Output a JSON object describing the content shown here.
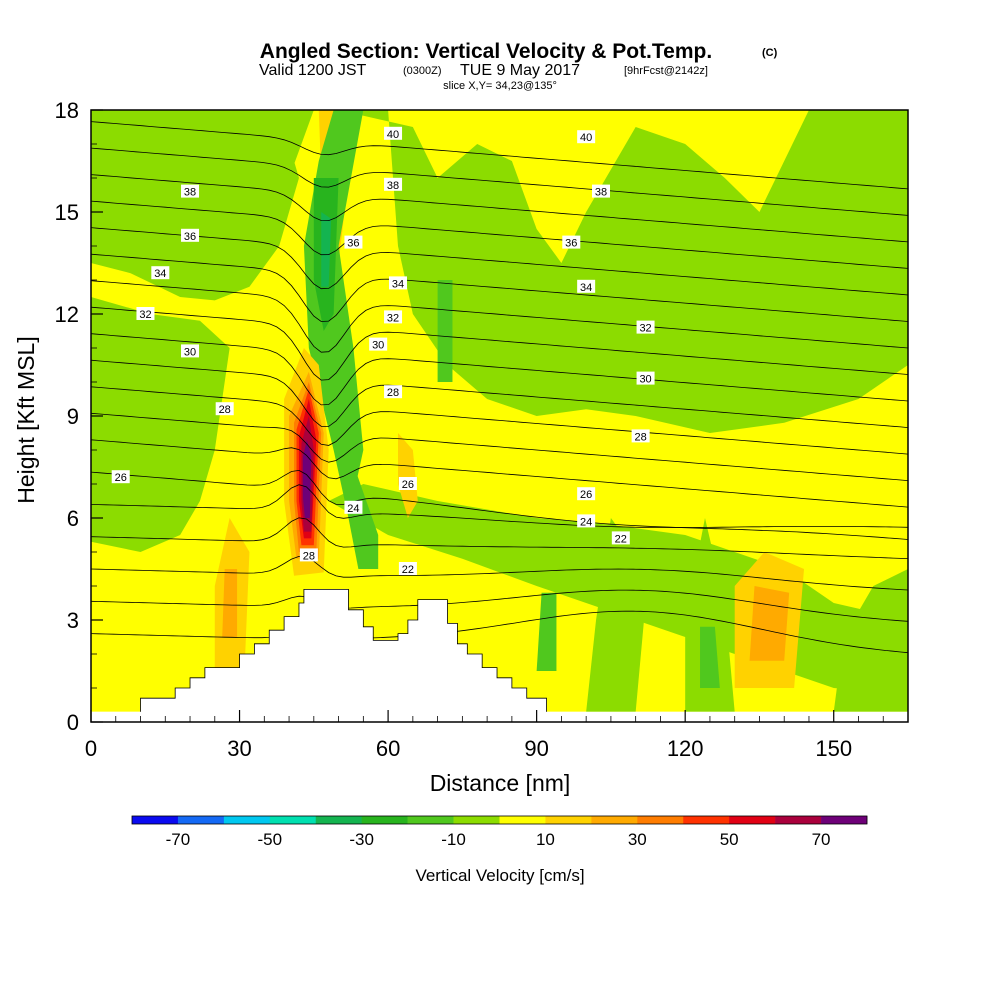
{
  "title": {
    "main": "Angled Section: Vertical Velocity & Pot.Temp.",
    "main_suffix": "(C)",
    "valid_prefix": "Valid 1200 JST",
    "valid_zulu": "(0300Z)",
    "valid_date": "TUE 9 May 2017",
    "valid_fcst": "[9hrFcst@2142z]",
    "slice": "slice X,Y= 34,23@135°"
  },
  "chart_data": {
    "type": "heatmap",
    "xlabel": "Distance [nm]",
    "ylabel": "Height [Kft MSL]",
    "xlim": [
      0,
      165
    ],
    "ylim": [
      0,
      18
    ],
    "x_ticks": [
      0,
      30,
      60,
      90,
      120,
      150
    ],
    "y_ticks": [
      0,
      3,
      6,
      9,
      12,
      15,
      18
    ],
    "colorbar": {
      "label": "Vertical Velocity [cm/s]",
      "tick_values": [
        -70,
        -50,
        -30,
        -10,
        10,
        30,
        50,
        70
      ],
      "bounds": [
        -80,
        -70,
        -60,
        -50,
        -40,
        -30,
        -20,
        -10,
        0,
        10,
        20,
        30,
        40,
        50,
        60,
        70,
        80
      ],
      "colors": [
        "#0a0af0",
        "#1469f5",
        "#00c8f0",
        "#00e0b0",
        "#14b450",
        "#28b41e",
        "#50c81e",
        "#8cdc00",
        "#ffff00",
        "#ffd200",
        "#ffaa00",
        "#ff7d00",
        "#ff3200",
        "#e10014",
        "#aa003c",
        "#6e0078"
      ]
    },
    "terrain": [
      [
        10,
        0.7
      ],
      [
        17,
        0.7
      ],
      [
        17,
        1.0
      ],
      [
        20,
        1.0
      ],
      [
        20,
        1.3
      ],
      [
        23,
        1.3
      ],
      [
        23,
        1.6
      ],
      [
        30,
        1.6
      ],
      [
        30,
        2.0
      ],
      [
        33,
        2.0
      ],
      [
        33,
        2.3
      ],
      [
        36,
        2.3
      ],
      [
        36,
        2.7
      ],
      [
        39,
        2.7
      ],
      [
        39,
        3.1
      ],
      [
        42,
        3.1
      ],
      [
        42,
        3.5
      ],
      [
        43,
        3.5
      ],
      [
        43,
        3.9
      ],
      [
        52,
        3.9
      ],
      [
        52,
        3.3
      ],
      [
        55,
        3.3
      ],
      [
        55,
        2.8
      ],
      [
        57,
        2.8
      ],
      [
        57,
        2.4
      ],
      [
        62,
        2.4
      ],
      [
        62,
        2.6
      ],
      [
        64,
        2.6
      ],
      [
        64,
        3.0
      ],
      [
        66,
        3.0
      ],
      [
        66,
        3.6
      ],
      [
        72,
        3.6
      ],
      [
        72,
        2.9
      ],
      [
        74,
        2.9
      ],
      [
        74,
        2.3
      ],
      [
        76,
        2.3
      ],
      [
        76,
        2.0
      ],
      [
        79,
        2.0
      ],
      [
        79,
        1.6
      ],
      [
        82,
        1.6
      ],
      [
        82,
        1.3
      ],
      [
        85,
        1.3
      ],
      [
        85,
        1.0
      ],
      [
        88,
        1.0
      ],
      [
        88,
        0.7
      ],
      [
        92,
        0.7
      ]
    ],
    "velocity_regions": [
      {
        "value": 0,
        "points": [
          [
            0,
            0.3
          ],
          [
            0,
            18
          ],
          [
            165,
            18
          ],
          [
            165,
            0.3
          ]
        ]
      },
      {
        "value": -10,
        "points": [
          [
            0,
            15.5
          ],
          [
            10,
            15.7
          ],
          [
            25,
            15.2
          ],
          [
            35,
            15.0
          ],
          [
            40,
            16.0
          ],
          [
            45,
            18
          ],
          [
            0,
            18
          ]
        ]
      },
      {
        "value": -10,
        "points": [
          [
            0,
            13.5
          ],
          [
            8,
            13.2
          ],
          [
            18,
            12.5
          ],
          [
            25,
            12.4
          ],
          [
            32,
            12.8
          ],
          [
            38,
            14.0
          ],
          [
            42,
            16.0
          ],
          [
            40,
            17.0
          ],
          [
            30,
            16.8
          ],
          [
            20,
            16.5
          ],
          [
            10,
            16.0
          ],
          [
            0,
            15.8
          ]
        ]
      },
      {
        "value": -10,
        "points": [
          [
            0,
            12.5
          ],
          [
            12,
            12.0
          ],
          [
            22,
            11.8
          ],
          [
            28,
            11.0
          ],
          [
            25,
            8.0
          ],
          [
            22,
            6.5
          ],
          [
            18,
            5.5
          ],
          [
            10,
            5.0
          ],
          [
            0,
            5.3
          ]
        ]
      },
      {
        "value": -10,
        "points": [
          [
            50,
            18
          ],
          [
            60,
            18
          ],
          [
            62,
            14.0
          ],
          [
            65,
            12.0
          ],
          [
            72,
            10.5
          ],
          [
            80,
            9.5
          ],
          [
            90,
            9.0
          ],
          [
            100,
            9.2
          ],
          [
            110,
            9.0
          ],
          [
            125,
            8.5
          ],
          [
            140,
            8.8
          ],
          [
            155,
            9.5
          ],
          [
            165,
            10.5
          ],
          [
            165,
            18
          ],
          [
            145,
            18
          ],
          [
            135,
            15.0
          ],
          [
            128,
            16.0
          ],
          [
            120,
            17.0
          ],
          [
            110,
            17.5
          ],
          [
            100,
            15.0
          ],
          [
            95,
            13.5
          ],
          [
            90,
            14.5
          ],
          [
            85,
            16.5
          ],
          [
            78,
            17.0
          ],
          [
            70,
            16.0
          ],
          [
            65,
            17.5
          ]
        ]
      },
      {
        "value": -10,
        "points": [
          [
            48,
            6.5
          ],
          [
            60,
            5.5
          ],
          [
            75,
            4.8
          ],
          [
            90,
            4.0
          ],
          [
            100,
            3.5
          ],
          [
            110,
            3.0
          ],
          [
            120,
            2.5
          ],
          [
            130,
            2.0
          ],
          [
            140,
            1.5
          ],
          [
            150,
            1.0
          ],
          [
            165,
            0.8
          ],
          [
            165,
            3.0
          ],
          [
            150,
            3.5
          ],
          [
            140,
            4.5
          ],
          [
            130,
            5.0
          ],
          [
            120,
            5.5
          ],
          [
            105,
            5.8
          ],
          [
            90,
            6.0
          ],
          [
            70,
            6.5
          ],
          [
            55,
            7.0
          ]
        ]
      },
      {
        "value": -10,
        "points": [
          [
            100,
            0.3
          ],
          [
            110,
            0.3
          ],
          [
            112,
            3.5
          ],
          [
            110,
            5.0
          ],
          [
            105,
            6.0
          ],
          [
            102,
            3.0
          ]
        ]
      },
      {
        "value": -10,
        "points": [
          [
            120,
            0.3
          ],
          [
            130,
            0.3
          ],
          [
            128,
            3.5
          ],
          [
            124,
            6.0
          ],
          [
            120,
            3.0
          ]
        ]
      },
      {
        "value": -10,
        "points": [
          [
            150,
            0.3
          ],
          [
            165,
            0.3
          ],
          [
            165,
            4.5
          ],
          [
            158,
            4.0
          ],
          [
            152,
            2.5
          ]
        ]
      },
      {
        "value": 10,
        "points": [
          [
            130,
            1.0
          ],
          [
            142,
            1.0
          ],
          [
            144,
            4.5
          ],
          [
            136,
            5.0
          ],
          [
            130,
            4.0
          ]
        ]
      },
      {
        "value": 20,
        "points": [
          [
            133,
            1.8
          ],
          [
            140,
            1.8
          ],
          [
            141,
            3.8
          ],
          [
            134,
            4.0
          ]
        ]
      },
      {
        "value": 10,
        "points": [
          [
            25,
            1.5
          ],
          [
            31,
            1.5
          ],
          [
            32,
            5.0
          ],
          [
            28,
            6.0
          ],
          [
            25,
            4.0
          ]
        ]
      },
      {
        "value": 20,
        "points": [
          [
            26.5,
            2.5
          ],
          [
            29.5,
            2.5
          ],
          [
            29.5,
            4.5
          ],
          [
            27,
            4.5
          ]
        ]
      },
      {
        "value": 10,
        "points": [
          [
            47,
            14.0
          ],
          [
            50,
            13.5
          ],
          [
            52,
            16.0
          ],
          [
            51,
            18
          ],
          [
            46,
            18
          ]
        ]
      },
      {
        "value": 20,
        "points": [
          [
            48.5,
            15.0
          ],
          [
            50.5,
            14.8
          ],
          [
            51.0,
            16.5
          ],
          [
            49.0,
            16.8
          ]
        ]
      },
      {
        "value": 10,
        "points": [
          [
            62,
            8.5
          ],
          [
            65,
            8.0
          ],
          [
            66,
            6.5
          ],
          [
            64,
            6.0
          ],
          [
            62,
            7.0
          ]
        ]
      },
      {
        "value": -20,
        "points": [
          [
            70,
            13.0
          ],
          [
            73,
            13.0
          ],
          [
            73,
            10.0
          ],
          [
            70,
            10.0
          ]
        ]
      },
      {
        "value": -20,
        "points": [
          [
            52,
            8.0
          ],
          [
            58,
            5.5
          ],
          [
            58,
            4.5
          ],
          [
            54,
            4.5
          ],
          [
            52,
            6.0
          ]
        ]
      },
      {
        "value": -20,
        "points": [
          [
            90,
            1.5
          ],
          [
            94,
            1.5
          ],
          [
            94,
            3.8
          ],
          [
            91,
            3.8
          ]
        ]
      },
      {
        "value": -20,
        "points": [
          [
            123,
            1.0
          ],
          [
            127,
            1.0
          ],
          [
            126,
            2.8
          ],
          [
            123,
            2.8
          ]
        ]
      },
      {
        "value": -20,
        "points": [
          [
            49,
            18
          ],
          [
            55,
            18
          ],
          [
            50,
            14.0
          ],
          [
            53,
            11.0
          ],
          [
            55,
            8.0
          ],
          [
            52,
            6.0
          ],
          [
            49,
            8.0
          ],
          [
            44,
            11.0
          ],
          [
            43,
            14.0
          ],
          [
            46,
            16.5
          ]
        ]
      },
      {
        "value": -30,
        "points": [
          [
            45,
            16.0
          ],
          [
            50,
            16.0
          ],
          [
            49,
            12.0
          ],
          [
            47,
            11.5
          ],
          [
            45,
            13.0
          ]
        ]
      },
      {
        "value": -40,
        "points": [
          [
            46.5,
            15.0
          ],
          [
            48.5,
            14.8
          ],
          [
            48.0,
            12.8
          ],
          [
            46.5,
            12.8
          ]
        ]
      },
      {
        "value": 10,
        "points": [
          [
            41,
            4.3
          ],
          [
            47,
            4.4
          ],
          [
            48,
            8.0
          ],
          [
            46,
            10.5
          ],
          [
            43,
            11.0
          ],
          [
            39,
            9.5
          ],
          [
            39,
            6.5
          ]
        ]
      },
      {
        "value": 20,
        "points": [
          [
            41.5,
            4.8
          ],
          [
            46,
            4.8
          ],
          [
            47,
            8.5
          ],
          [
            44,
            10.3
          ],
          [
            40,
            9.0
          ],
          [
            40,
            6.5
          ]
        ]
      },
      {
        "value": 30,
        "points": [
          [
            42,
            5.0
          ],
          [
            45.5,
            5.0
          ],
          [
            46.5,
            8.5
          ],
          [
            44,
            10.0
          ],
          [
            41,
            8.8
          ],
          [
            41,
            6.5
          ]
        ]
      },
      {
        "value": 40,
        "points": [
          [
            42.5,
            5.2
          ],
          [
            45,
            5.2
          ],
          [
            46,
            8.5
          ],
          [
            44,
            9.8
          ],
          [
            41.5,
            8.6
          ],
          [
            41.5,
            6.5
          ]
        ]
      },
      {
        "value": 50,
        "points": [
          [
            43,
            5.4
          ],
          [
            44.5,
            5.4
          ],
          [
            45.5,
            8.3
          ],
          [
            44,
            9.5
          ],
          [
            42,
            8.4
          ],
          [
            42,
            6.5
          ]
        ]
      },
      {
        "value": 60,
        "points": [
          [
            43,
            5.6
          ],
          [
            44.5,
            5.6
          ],
          [
            45,
            8.0
          ],
          [
            44,
            9.0
          ],
          [
            42.5,
            8.2
          ],
          [
            42.5,
            6.5
          ]
        ]
      },
      {
        "value": 70,
        "points": [
          [
            43.2,
            6.0
          ],
          [
            44.2,
            6.0
          ],
          [
            44.5,
            7.8
          ],
          [
            43.6,
            8.3
          ],
          [
            42.8,
            7.8
          ],
          [
            42.8,
            6.6
          ]
        ]
      }
    ],
    "theta_contours": [
      22,
      23,
      24,
      25,
      26,
      27,
      28,
      29,
      30,
      31,
      32,
      33,
      34,
      35,
      36,
      37,
      38,
      39,
      40
    ],
    "contour_labels": [
      {
        "text": "40",
        "x": 61,
        "y": 17.3
      },
      {
        "text": "40",
        "x": 100,
        "y": 17.2
      },
      {
        "text": "38",
        "x": 20,
        "y": 15.6
      },
      {
        "text": "38",
        "x": 61,
        "y": 15.8
      },
      {
        "text": "38",
        "x": 103,
        "y": 15.6
      },
      {
        "text": "36",
        "x": 20,
        "y": 14.3
      },
      {
        "text": "36",
        "x": 53,
        "y": 14.1
      },
      {
        "text": "36",
        "x": 97,
        "y": 14.1
      },
      {
        "text": "34",
        "x": 14,
        "y": 13.2
      },
      {
        "text": "34",
        "x": 62,
        "y": 12.9
      },
      {
        "text": "34",
        "x": 100,
        "y": 12.8
      },
      {
        "text": "32",
        "x": 11,
        "y": 12.0
      },
      {
        "text": "32",
        "x": 61,
        "y": 11.9
      },
      {
        "text": "32",
        "x": 112,
        "y": 11.6
      },
      {
        "text": "30",
        "x": 20,
        "y": 10.9
      },
      {
        "text": "30",
        "x": 58,
        "y": 11.1
      },
      {
        "text": "30",
        "x": 112,
        "y": 10.1
      },
      {
        "text": "28",
        "x": 27,
        "y": 9.2
      },
      {
        "text": "28",
        "x": 61,
        "y": 9.7
      },
      {
        "text": "28",
        "x": 111,
        "y": 8.4
      },
      {
        "text": "26",
        "x": 6,
        "y": 7.2
      },
      {
        "text": "26",
        "x": 64,
        "y": 7.0
      },
      {
        "text": "26",
        "x": 100,
        "y": 6.7
      },
      {
        "text": "24",
        "x": 53,
        "y": 6.3
      },
      {
        "text": "24",
        "x": 100,
        "y": 5.9
      },
      {
        "text": "22",
        "x": 107,
        "y": 5.4
      },
      {
        "text": "22",
        "x": 64,
        "y": 4.5
      },
      {
        "text": "28",
        "x": 44,
        "y": 4.9
      }
    ]
  }
}
